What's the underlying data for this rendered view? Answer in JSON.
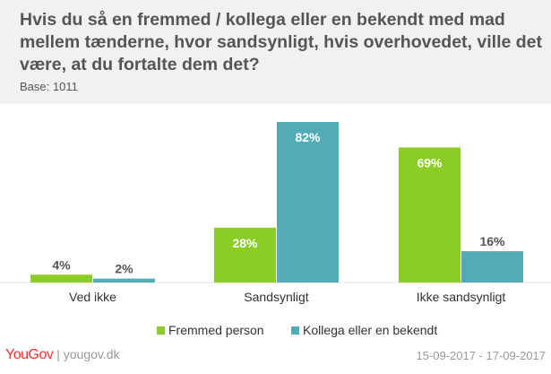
{
  "header": {
    "title": "Hvis du så en fremmed / kollega eller en bekendt med mad mellem tænderne, hvor sandsynligt, hvis overhovedet, ville det være, at du fortalte dem det?",
    "base": "Base: 1011"
  },
  "chart_data": {
    "type": "bar",
    "title": "Hvis du så en fremmed / kollega eller en bekendt med mad mellem tænderne, hvor sandsynligt, hvis overhovedet, ville det være, at du fortalte dem det?",
    "subtitle": "Base: 1011",
    "categories": [
      "Ved ikke",
      "Sandsynligt",
      "Ikke sandsynligt"
    ],
    "series": [
      {
        "name": "Fremmed person",
        "values": [
          4,
          28,
          69
        ],
        "labels": [
          "4%",
          "28%",
          "69%"
        ],
        "color": "#8ccd25"
      },
      {
        "name": "Kollega eller en bekendt",
        "values": [
          2,
          82,
          16
        ],
        "labels": [
          "2%",
          "82%",
          "16%"
        ],
        "color": "#51acb8"
      }
    ],
    "ylim": [
      0,
      82
    ],
    "xlabel": "",
    "ylabel": "",
    "grid": false,
    "legend": "bottom"
  },
  "footer": {
    "brand": "YouGov",
    "site": "yougov.dk",
    "dates": "15-09-2017 - 17-09-2017"
  },
  "colors": {
    "header_bg": "#f1f1f1",
    "label_dark": "#555555",
    "label_inside": "#ffffff",
    "brand": "#ff2b2b"
  }
}
